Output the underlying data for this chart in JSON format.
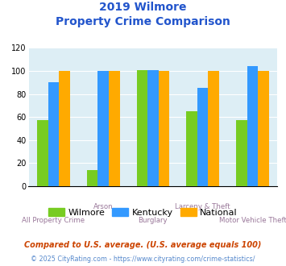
{
  "title_line1": "2019 Wilmore",
  "title_line2": "Property Crime Comparison",
  "categories": [
    "All Property Crime",
    "Arson",
    "Burglary",
    "Larceny & Theft",
    "Motor Vehicle Theft"
  ],
  "wilmore": [
    57,
    14,
    101,
    65,
    57
  ],
  "kentucky": [
    90,
    100,
    101,
    85,
    104
  ],
  "national": [
    100,
    100,
    100,
    100,
    100
  ],
  "color_wilmore": "#77cc22",
  "color_kentucky": "#3399ff",
  "color_national": "#ffaa00",
  "color_title": "#2255cc",
  "color_bg": "#ddeef5",
  "color_xlabel": "#997799",
  "ylim": [
    0,
    120
  ],
  "yticks": [
    0,
    20,
    40,
    60,
    80,
    100,
    120
  ],
  "footnote1": "Compared to U.S. average. (U.S. average equals 100)",
  "footnote2": "© 2025 CityRating.com - https://www.cityrating.com/crime-statistics/",
  "footnote1_color": "#cc4400",
  "footnote2_color": "#5588cc",
  "legend_labels": [
    "Wilmore",
    "Kentucky",
    "National"
  ],
  "bar_width": 0.22
}
